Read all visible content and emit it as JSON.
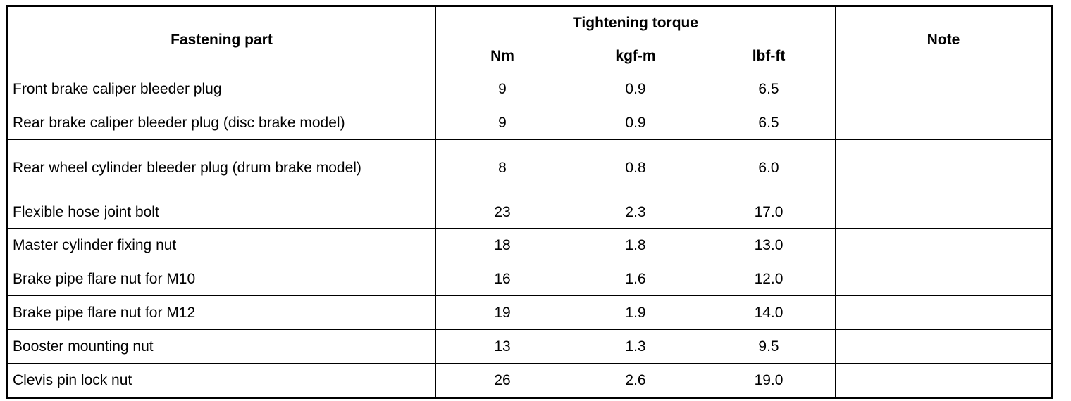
{
  "table": {
    "header": {
      "part": "Fastening part",
      "group": "Tightening torque",
      "note": "Note",
      "units": [
        "Nm",
        "kgf-m",
        "lbf-ft"
      ]
    },
    "rows": [
      [
        "Front brake caliper bleeder plug",
        "9",
        "0.9",
        "6.5"
      ],
      [
        "Rear brake caliper bleeder plug (disc brake model)",
        "9",
        "0.9",
        "6.5"
      ],
      [
        "Rear wheel cylinder bleeder plug (drum brake model)",
        "8",
        "0.8",
        "6.0"
      ],
      [
        "Flexible hose joint bolt",
        "23",
        "2.3",
        "17.0"
      ],
      [
        "Master cylinder fixing nut",
        "18",
        "1.8",
        "13.0"
      ],
      [
        "Brake pipe flare nut for M10",
        "16",
        "1.6",
        "12.0"
      ],
      [
        "Brake pipe flare nut for M12",
        "19",
        "1.9",
        "14.0"
      ],
      [
        "Booster mounting nut",
        "13",
        "1.3",
        "9.5"
      ],
      [
        "Clevis pin lock nut",
        "26",
        "2.6",
        "19.0"
      ]
    ]
  }
}
